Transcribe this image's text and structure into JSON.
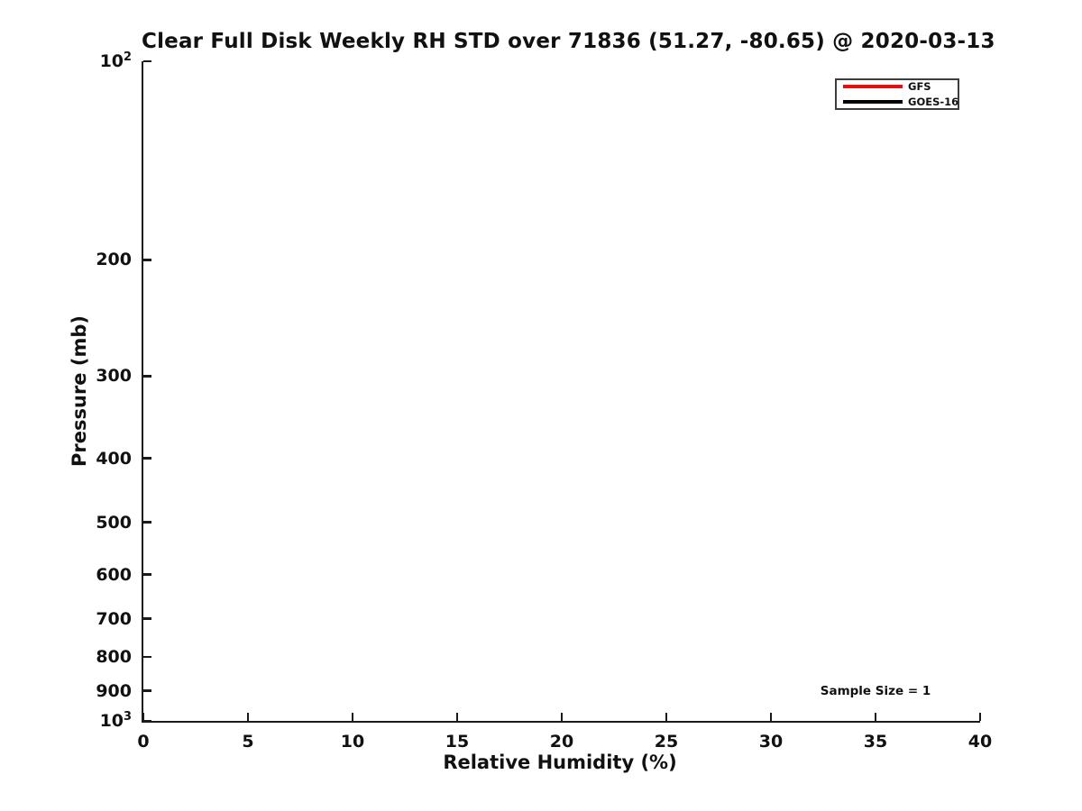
{
  "colors": {
    "background": "#ffffff",
    "text": "#111111",
    "axis": "#1a1a1a",
    "legend_border": "#3d3d3d",
    "gfs_red": "#e01212",
    "goes_black": "#000000"
  },
  "chart_data": {
    "type": "line",
    "title": "Clear Full Disk Weekly RH STD over 71836 (51.27, -80.65) @ 2020-03-13",
    "xlabel": "Relative Humidity (%)",
    "ylabel": "Pressure (mb)",
    "xlim": [
      0,
      40
    ],
    "ylim": [
      100,
      1000
    ],
    "x_scale": "linear",
    "y_scale": "log",
    "y_inverted": true,
    "grid": false,
    "box": false,
    "x_ticks": [
      0,
      5,
      10,
      15,
      20,
      25,
      30,
      35,
      40
    ],
    "y_ticks": [
      {
        "value": 100,
        "label": "10^2"
      },
      {
        "value": 200,
        "label": "200"
      },
      {
        "value": 300,
        "label": "300"
      },
      {
        "value": 400,
        "label": "400"
      },
      {
        "value": 500,
        "label": "500"
      },
      {
        "value": 600,
        "label": "600"
      },
      {
        "value": 700,
        "label": "700"
      },
      {
        "value": 800,
        "label": "800"
      },
      {
        "value": 900,
        "label": "900"
      },
      {
        "value": 1000,
        "label": "10^3"
      }
    ],
    "legend": {
      "position": "upper-right",
      "entries": [
        {
          "label": "GFS",
          "color": "#e01212"
        },
        {
          "label": "GOES-16",
          "color": "#000000"
        }
      ]
    },
    "series": [
      {
        "name": "GFS",
        "color": "#e01212",
        "x": [],
        "y": []
      },
      {
        "name": "GOES-16",
        "color": "#000000",
        "x": [],
        "y": []
      }
    ],
    "annotations": [
      {
        "text": "Sample Size = 1",
        "x": 35,
        "y": 900
      }
    ]
  }
}
